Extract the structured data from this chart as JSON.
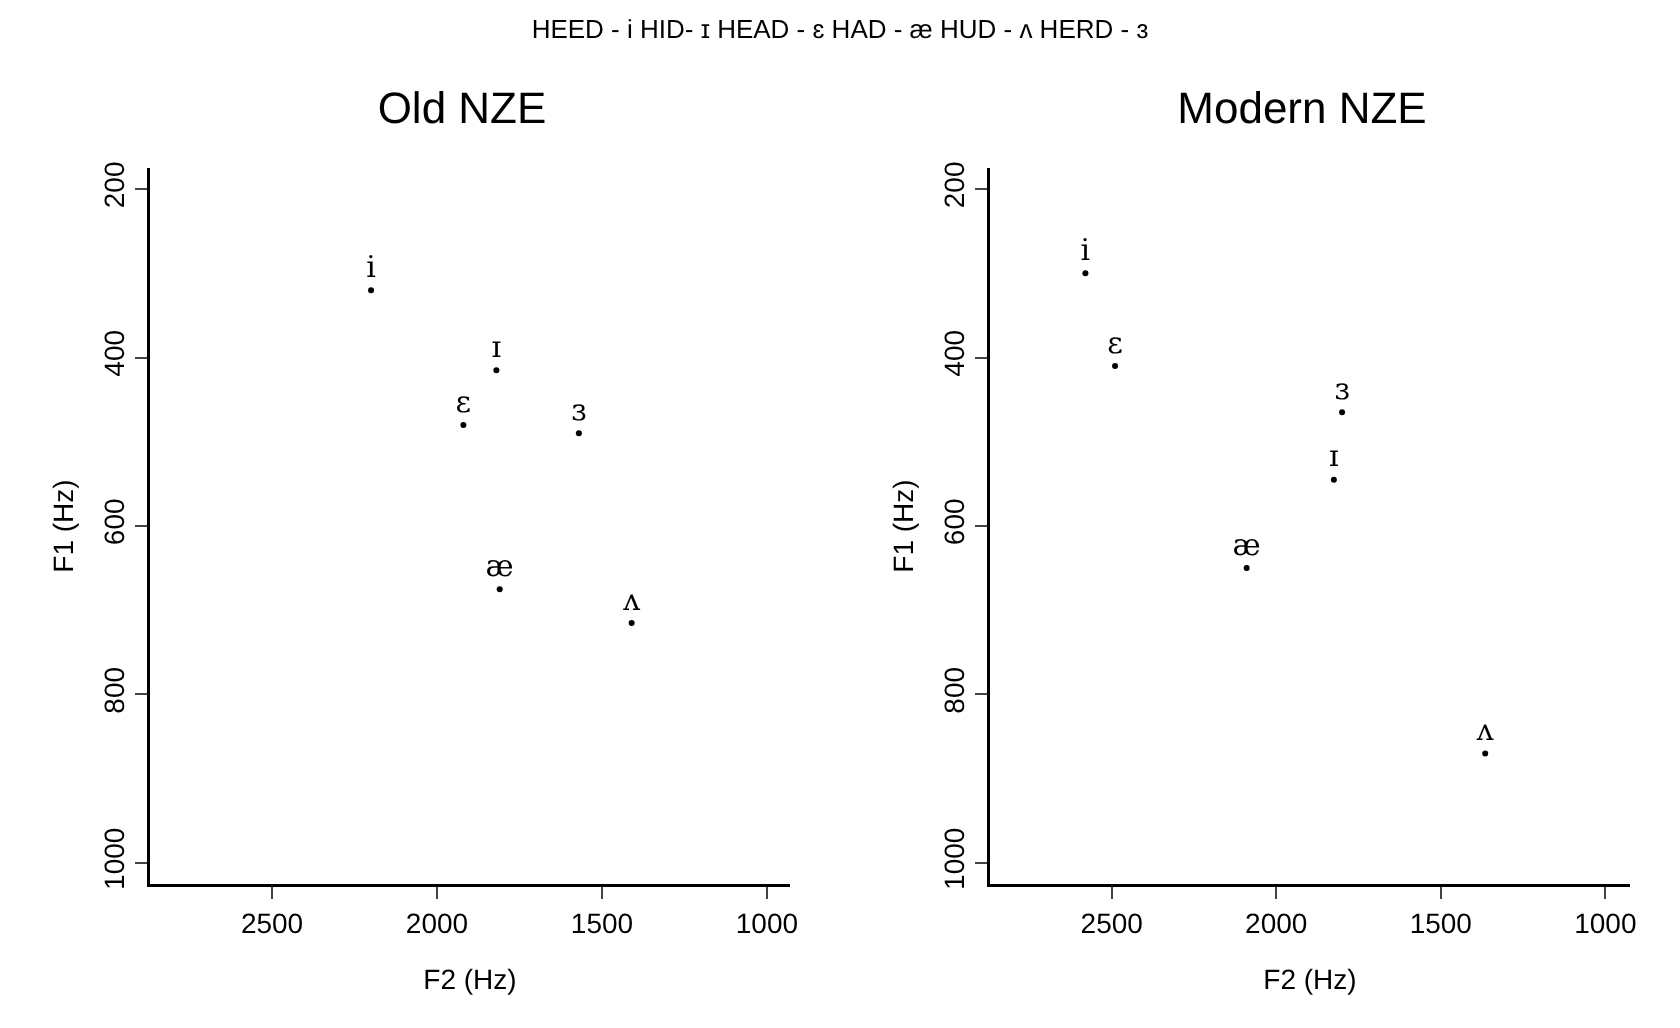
{
  "chart_data": [
    {
      "type": "scatter",
      "title": "Old NZE",
      "xlabel": "F2 (Hz)",
      "ylabel": "F1 (Hz)",
      "annotations": [
        "HEED - i HID- ɪ HEAD - ɛ HAD - æ HUD - ʌ HERD - ɜ"
      ],
      "xlim": [
        2870,
        930
      ],
      "ylim": [
        1025,
        175
      ],
      "xticks": [
        2500,
        2000,
        1500,
        1000
      ],
      "yticks": [
        200,
        400,
        600,
        800,
        1000
      ],
      "marker": "circle",
      "series": [
        {
          "name": "i",
          "color": "#000000",
          "x": [
            2200
          ],
          "values": [
            320
          ]
        },
        {
          "name": "ɪ",
          "color": "#000000",
          "x": [
            1820
          ],
          "values": [
            415
          ]
        },
        {
          "name": "ɛ",
          "color": "#000000",
          "x": [
            1920
          ],
          "values": [
            480
          ]
        },
        {
          "name": "ɜ",
          "color": "#000000",
          "x": [
            1570
          ],
          "values": [
            490
          ]
        },
        {
          "name": "æ",
          "color": "#000000",
          "x": [
            1810
          ],
          "values": [
            675
          ]
        },
        {
          "name": "ʌ",
          "color": "#000000",
          "x": [
            1410
          ],
          "values": [
            715
          ]
        }
      ]
    },
    {
      "type": "scatter",
      "title": "Modern NZE",
      "xlabel": "F2 (Hz)",
      "ylabel": "F1 (Hz)",
      "xlim": [
        2870,
        925
      ],
      "ylim": [
        1025,
        175
      ],
      "xticks": [
        2500,
        2000,
        1500,
        1000
      ],
      "yticks": [
        200,
        400,
        600,
        800,
        1000
      ],
      "marker": "circle",
      "series": [
        {
          "name": "i",
          "color": "#000000",
          "x": [
            2580
          ],
          "values": [
            300
          ]
        },
        {
          "name": "ɛ",
          "color": "#000000",
          "x": [
            2490
          ],
          "values": [
            410
          ]
        },
        {
          "name": "ɜ",
          "color": "#000000",
          "x": [
            1800
          ],
          "values": [
            465
          ]
        },
        {
          "name": "ɪ",
          "color": "#000000",
          "x": [
            1825
          ],
          "values": [
            545
          ]
        },
        {
          "name": "æ",
          "color": "#000000",
          "x": [
            2090
          ],
          "values": [
            650
          ]
        },
        {
          "name": "ʌ",
          "color": "#000000",
          "x": [
            1365
          ],
          "values": [
            870
          ]
        }
      ]
    }
  ]
}
